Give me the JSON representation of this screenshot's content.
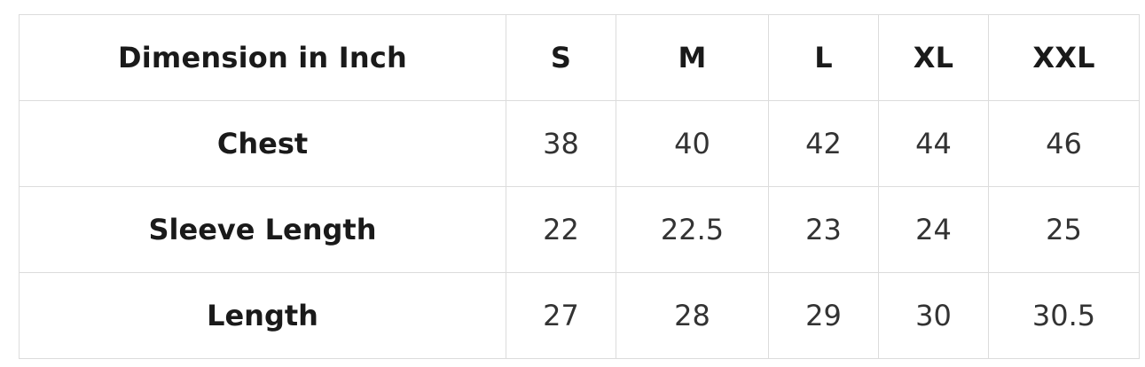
{
  "table": {
    "header": {
      "label": "Dimension in Inch",
      "sizes": [
        "S",
        "M",
        "L",
        "XL",
        "XXL"
      ]
    },
    "rows": [
      {
        "label": "Chest",
        "values": [
          "38",
          "40",
          "42",
          "44",
          "46"
        ]
      },
      {
        "label": "Sleeve Length",
        "values": [
          "22",
          "22.5",
          "23",
          "24",
          "25"
        ]
      },
      {
        "label": "Length",
        "values": [
          "27",
          "28",
          "29",
          "30",
          "30.5"
        ]
      }
    ]
  }
}
